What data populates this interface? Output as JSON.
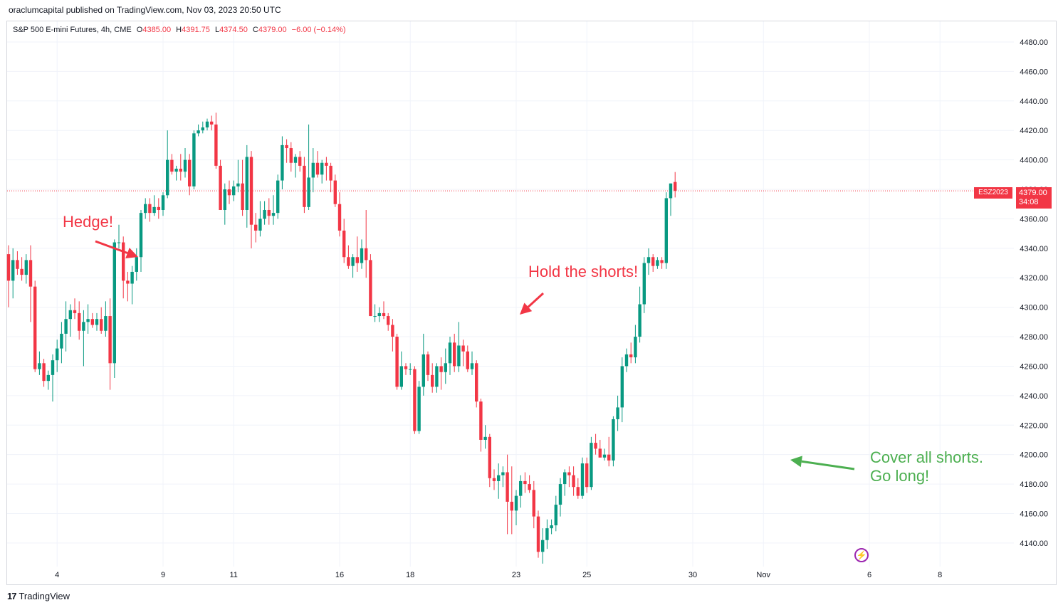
{
  "header": {
    "published": "oraclumcapital published on TradingView.com, Nov 03, 2023 20:50 UTC"
  },
  "legend": {
    "symbol": "S&P 500 E-mini Futures, 4h, CME",
    "open_label": "O",
    "open": "4385.00",
    "high_label": "H",
    "high": "4391.75",
    "low_label": "L",
    "low": "4374.50",
    "close_label": "C",
    "close": "4379.00",
    "change": "−6.00 (−0.14%)"
  },
  "price_badge": {
    "symbol": "ESZ2023",
    "price": "4379.00",
    "countdown": "34:08"
  },
  "annotations": {
    "hedge": "Hedge!",
    "hold": "Hold the shorts!",
    "cover_line1": "Cover all shorts.",
    "cover_line2": "Go long!"
  },
  "footer": {
    "brand": "TradingView"
  },
  "colors": {
    "up": "#089981",
    "down": "#f23645",
    "grid": "#f0f3fa",
    "annotation_red": "#f23645",
    "annotation_green": "#4caf50"
  },
  "icons": {
    "flash": "flash-icon",
    "logo": "tradingview-logo-icon"
  },
  "chart_data": {
    "type": "candlestick",
    "timeframe": "4h",
    "ylim": [
      4124,
      4494
    ],
    "y_ticks": [
      "4140.00",
      "4160.00",
      "4180.00",
      "4200.00",
      "4220.00",
      "4240.00",
      "4260.00",
      "4280.00",
      "4300.00",
      "4320.00",
      "4340.00",
      "4360.00",
      "4380.00",
      "4400.00",
      "4420.00",
      "4440.00",
      "4460.00",
      "4480.00"
    ],
    "x_ticks": [
      {
        "label": "4",
        "index": 11
      },
      {
        "label": "9",
        "index": 35
      },
      {
        "label": "11",
        "index": 51
      },
      {
        "label": "16",
        "index": 75
      },
      {
        "label": "18",
        "index": 91
      },
      {
        "label": "23",
        "index": 115
      },
      {
        "label": "25",
        "index": 131
      },
      {
        "label": "30",
        "index": 155
      },
      {
        "label": "Nov",
        "index": 171
      },
      {
        "label": "6",
        "index": 195
      },
      {
        "label": "8",
        "index": 211
      }
    ],
    "last_price": 4379.0,
    "grid": true,
    "candles": [
      {
        "o": 4336,
        "h": 4342,
        "l": 4300,
        "c": 4318
      },
      {
        "o": 4318,
        "h": 4340,
        "l": 4306,
        "c": 4332
      },
      {
        "o": 4332,
        "h": 4338,
        "l": 4322,
        "c": 4326
      },
      {
        "o": 4326,
        "h": 4334,
        "l": 4318,
        "c": 4322
      },
      {
        "o": 4322,
        "h": 4336,
        "l": 4316,
        "c": 4332
      },
      {
        "o": 4332,
        "h": 4342,
        "l": 4290,
        "c": 4314
      },
      {
        "o": 4314,
        "h": 4318,
        "l": 4256,
        "c": 4258
      },
      {
        "o": 4258,
        "h": 4270,
        "l": 4254,
        "c": 4262
      },
      {
        "o": 4262,
        "h": 4265,
        "l": 4246,
        "c": 4250
      },
      {
        "o": 4250,
        "h": 4257,
        "l": 4244,
        "c": 4254
      },
      {
        "o": 4254,
        "h": 4268,
        "l": 4236,
        "c": 4264
      },
      {
        "o": 4264,
        "h": 4278,
        "l": 4256,
        "c": 4272
      },
      {
        "o": 4272,
        "h": 4290,
        "l": 4262,
        "c": 4282
      },
      {
        "o": 4282,
        "h": 4304,
        "l": 4270,
        "c": 4292
      },
      {
        "o": 4292,
        "h": 4302,
        "l": 4280,
        "c": 4298
      },
      {
        "o": 4298,
        "h": 4306,
        "l": 4292,
        "c": 4296
      },
      {
        "o": 4296,
        "h": 4304,
        "l": 4278,
        "c": 4284
      },
      {
        "o": 4284,
        "h": 4298,
        "l": 4260,
        "c": 4290
      },
      {
        "o": 4290,
        "h": 4302,
        "l": 4282,
        "c": 4292
      },
      {
        "o": 4292,
        "h": 4296,
        "l": 4286,
        "c": 4288
      },
      {
        "o": 4288,
        "h": 4296,
        "l": 4284,
        "c": 4292
      },
      {
        "o": 4292,
        "h": 4300,
        "l": 4282,
        "c": 4284
      },
      {
        "o": 4284,
        "h": 4304,
        "l": 4280,
        "c": 4294
      },
      {
        "o": 4294,
        "h": 4306,
        "l": 4244,
        "c": 4262
      },
      {
        "o": 4262,
        "h": 4346,
        "l": 4252,
        "c": 4344
      },
      {
        "o": 4344,
        "h": 4356,
        "l": 4340,
        "c": 4344
      },
      {
        "o": 4344,
        "h": 4348,
        "l": 4306,
        "c": 4318
      },
      {
        "o": 4318,
        "h": 4324,
        "l": 4304,
        "c": 4316
      },
      {
        "o": 4316,
        "h": 4328,
        "l": 4302,
        "c": 4324
      },
      {
        "o": 4324,
        "h": 4340,
        "l": 4318,
        "c": 4334
      },
      {
        "o": 4334,
        "h": 4366,
        "l": 4324,
        "c": 4364
      },
      {
        "o": 4364,
        "h": 4374,
        "l": 4360,
        "c": 4370
      },
      {
        "o": 4370,
        "h": 4374,
        "l": 4358,
        "c": 4364
      },
      {
        "o": 4364,
        "h": 4376,
        "l": 4362,
        "c": 4368
      },
      {
        "o": 4368,
        "h": 4374,
        "l": 4360,
        "c": 4366
      },
      {
        "o": 4366,
        "h": 4378,
        "l": 4362,
        "c": 4376
      },
      {
        "o": 4376,
        "h": 4420,
        "l": 4374,
        "c": 4400
      },
      {
        "o": 4400,
        "h": 4404,
        "l": 4390,
        "c": 4392
      },
      {
        "o": 4392,
        "h": 4396,
        "l": 4386,
        "c": 4394
      },
      {
        "o": 4394,
        "h": 4404,
        "l": 4386,
        "c": 4392
      },
      {
        "o": 4392,
        "h": 4408,
        "l": 4388,
        "c": 4400
      },
      {
        "o": 4400,
        "h": 4404,
        "l": 4376,
        "c": 4382
      },
      {
        "o": 4382,
        "h": 4420,
        "l": 4380,
        "c": 4418
      },
      {
        "o": 4418,
        "h": 4424,
        "l": 4416,
        "c": 4420
      },
      {
        "o": 4420,
        "h": 4426,
        "l": 4418,
        "c": 4422
      },
      {
        "o": 4422,
        "h": 4428,
        "l": 4420,
        "c": 4426
      },
      {
        "o": 4426,
        "h": 4430,
        "l": 4420,
        "c": 4424
      },
      {
        "o": 4424,
        "h": 4432,
        "l": 4394,
        "c": 4396
      },
      {
        "o": 4396,
        "h": 4400,
        "l": 4366,
        "c": 4366
      },
      {
        "o": 4366,
        "h": 4384,
        "l": 4356,
        "c": 4380
      },
      {
        "o": 4380,
        "h": 4386,
        "l": 4370,
        "c": 4376
      },
      {
        "o": 4376,
        "h": 4386,
        "l": 4372,
        "c": 4382
      },
      {
        "o": 4382,
        "h": 4400,
        "l": 4378,
        "c": 4384
      },
      {
        "o": 4384,
        "h": 4400,
        "l": 4362,
        "c": 4366
      },
      {
        "o": 4366,
        "h": 4410,
        "l": 4354,
        "c": 4402
      },
      {
        "o": 4402,
        "h": 4406,
        "l": 4340,
        "c": 4356
      },
      {
        "o": 4356,
        "h": 4364,
        "l": 4344,
        "c": 4352
      },
      {
        "o": 4352,
        "h": 4372,
        "l": 4348,
        "c": 4360
      },
      {
        "o": 4360,
        "h": 4372,
        "l": 4356,
        "c": 4366
      },
      {
        "o": 4366,
        "h": 4374,
        "l": 4356,
        "c": 4362
      },
      {
        "o": 4362,
        "h": 4376,
        "l": 4356,
        "c": 4364
      },
      {
        "o": 4364,
        "h": 4390,
        "l": 4360,
        "c": 4386
      },
      {
        "o": 4386,
        "h": 4416,
        "l": 4380,
        "c": 4410
      },
      {
        "o": 4410,
        "h": 4414,
        "l": 4398,
        "c": 4408
      },
      {
        "o": 4408,
        "h": 4412,
        "l": 4392,
        "c": 4398
      },
      {
        "o": 4398,
        "h": 4404,
        "l": 4388,
        "c": 4402
      },
      {
        "o": 4402,
        "h": 4406,
        "l": 4392,
        "c": 4396
      },
      {
        "o": 4396,
        "h": 4402,
        "l": 4364,
        "c": 4368
      },
      {
        "o": 4368,
        "h": 4424,
        "l": 4366,
        "c": 4388
      },
      {
        "o": 4388,
        "h": 4408,
        "l": 4378,
        "c": 4398
      },
      {
        "o": 4398,
        "h": 4406,
        "l": 4388,
        "c": 4390
      },
      {
        "o": 4390,
        "h": 4400,
        "l": 4384,
        "c": 4398
      },
      {
        "o": 4398,
        "h": 4402,
        "l": 4386,
        "c": 4396
      },
      {
        "o": 4396,
        "h": 4398,
        "l": 4378,
        "c": 4386
      },
      {
        "o": 4386,
        "h": 4390,
        "l": 4368,
        "c": 4370
      },
      {
        "o": 4370,
        "h": 4378,
        "l": 4348,
        "c": 4352
      },
      {
        "o": 4352,
        "h": 4360,
        "l": 4330,
        "c": 4334
      },
      {
        "o": 4334,
        "h": 4342,
        "l": 4326,
        "c": 4328
      },
      {
        "o": 4328,
        "h": 4336,
        "l": 4320,
        "c": 4334
      },
      {
        "o": 4334,
        "h": 4348,
        "l": 4324,
        "c": 4330
      },
      {
        "o": 4330,
        "h": 4346,
        "l": 4326,
        "c": 4340
      },
      {
        "o": 4340,
        "h": 4366,
        "l": 4320,
        "c": 4332
      },
      {
        "o": 4332,
        "h": 4336,
        "l": 4294,
        "c": 4294
      },
      {
        "o": 4294,
        "h": 4302,
        "l": 4290,
        "c": 4294
      },
      {
        "o": 4294,
        "h": 4300,
        "l": 4290,
        "c": 4296
      },
      {
        "o": 4296,
        "h": 4304,
        "l": 4292,
        "c": 4294
      },
      {
        "o": 4294,
        "h": 4296,
        "l": 4284,
        "c": 4288
      },
      {
        "o": 4288,
        "h": 4292,
        "l": 4270,
        "c": 4280
      },
      {
        "o": 4280,
        "h": 4282,
        "l": 4244,
        "c": 4246
      },
      {
        "o": 4246,
        "h": 4270,
        "l": 4244,
        "c": 4260
      },
      {
        "o": 4260,
        "h": 4262,
        "l": 4254,
        "c": 4258
      },
      {
        "o": 4258,
        "h": 4262,
        "l": 4254,
        "c": 4258
      },
      {
        "o": 4258,
        "h": 4260,
        "l": 4214,
        "c": 4216
      },
      {
        "o": 4216,
        "h": 4250,
        "l": 4214,
        "c": 4246
      },
      {
        "o": 4246,
        "h": 4282,
        "l": 4240,
        "c": 4268
      },
      {
        "o": 4268,
        "h": 4270,
        "l": 4250,
        "c": 4254
      },
      {
        "o": 4254,
        "h": 4262,
        "l": 4242,
        "c": 4246
      },
      {
        "o": 4246,
        "h": 4262,
        "l": 4242,
        "c": 4260
      },
      {
        "o": 4260,
        "h": 4266,
        "l": 4244,
        "c": 4256
      },
      {
        "o": 4256,
        "h": 4272,
        "l": 4248,
        "c": 4262
      },
      {
        "o": 4262,
        "h": 4280,
        "l": 4254,
        "c": 4276
      },
      {
        "o": 4276,
        "h": 4282,
        "l": 4256,
        "c": 4260
      },
      {
        "o": 4260,
        "h": 4290,
        "l": 4256,
        "c": 4274
      },
      {
        "o": 4274,
        "h": 4278,
        "l": 4260,
        "c": 4270
      },
      {
        "o": 4270,
        "h": 4274,
        "l": 4256,
        "c": 4258
      },
      {
        "o": 4258,
        "h": 4270,
        "l": 4254,
        "c": 4262
      },
      {
        "o": 4262,
        "h": 4264,
        "l": 4232,
        "c": 4236
      },
      {
        "o": 4236,
        "h": 4238,
        "l": 4202,
        "c": 4210
      },
      {
        "o": 4210,
        "h": 4220,
        "l": 4204,
        "c": 4212
      },
      {
        "o": 4212,
        "h": 4214,
        "l": 4178,
        "c": 4184
      },
      {
        "o": 4184,
        "h": 4190,
        "l": 4176,
        "c": 4182
      },
      {
        "o": 4182,
        "h": 4194,
        "l": 4170,
        "c": 4186
      },
      {
        "o": 4186,
        "h": 4192,
        "l": 4178,
        "c": 4188
      },
      {
        "o": 4188,
        "h": 4200,
        "l": 4146,
        "c": 4168
      },
      {
        "o": 4168,
        "h": 4192,
        "l": 4146,
        "c": 4162
      },
      {
        "o": 4162,
        "h": 4176,
        "l": 4152,
        "c": 4172
      },
      {
        "o": 4172,
        "h": 4186,
        "l": 4164,
        "c": 4182
      },
      {
        "o": 4182,
        "h": 4188,
        "l": 4174,
        "c": 4180
      },
      {
        "o": 4180,
        "h": 4186,
        "l": 4174,
        "c": 4176
      },
      {
        "o": 4176,
        "h": 4182,
        "l": 4150,
        "c": 4158
      },
      {
        "o": 4158,
        "h": 4162,
        "l": 4130,
        "c": 4134
      },
      {
        "o": 4134,
        "h": 4150,
        "l": 4126,
        "c": 4142
      },
      {
        "o": 4142,
        "h": 4156,
        "l": 4136,
        "c": 4150
      },
      {
        "o": 4150,
        "h": 4156,
        "l": 4146,
        "c": 4152
      },
      {
        "o": 4152,
        "h": 4172,
        "l": 4148,
        "c": 4166
      },
      {
        "o": 4166,
        "h": 4184,
        "l": 4158,
        "c": 4180
      },
      {
        "o": 4180,
        "h": 4190,
        "l": 4172,
        "c": 4188
      },
      {
        "o": 4188,
        "h": 4192,
        "l": 4178,
        "c": 4186
      },
      {
        "o": 4186,
        "h": 4192,
        "l": 4172,
        "c": 4178
      },
      {
        "o": 4178,
        "h": 4184,
        "l": 4170,
        "c": 4172
      },
      {
        "o": 4172,
        "h": 4198,
        "l": 4170,
        "c": 4194
      },
      {
        "o": 4194,
        "h": 4198,
        "l": 4174,
        "c": 4178
      },
      {
        "o": 4178,
        "h": 4212,
        "l": 4176,
        "c": 4208
      },
      {
        "o": 4208,
        "h": 4214,
        "l": 4200,
        "c": 4204
      },
      {
        "o": 4204,
        "h": 4210,
        "l": 4198,
        "c": 4198
      },
      {
        "o": 4198,
        "h": 4204,
        "l": 4196,
        "c": 4200
      },
      {
        "o": 4200,
        "h": 4212,
        "l": 4192,
        "c": 4196
      },
      {
        "o": 4196,
        "h": 4226,
        "l": 4192,
        "c": 4224
      },
      {
        "o": 4224,
        "h": 4240,
        "l": 4216,
        "c": 4232
      },
      {
        "o": 4232,
        "h": 4266,
        "l": 4222,
        "c": 4260
      },
      {
        "o": 4260,
        "h": 4272,
        "l": 4256,
        "c": 4268
      },
      {
        "o": 4268,
        "h": 4276,
        "l": 4262,
        "c": 4266
      },
      {
        "o": 4266,
        "h": 4288,
        "l": 4262,
        "c": 4280
      },
      {
        "o": 4280,
        "h": 4314,
        "l": 4276,
        "c": 4302
      },
      {
        "o": 4302,
        "h": 4334,
        "l": 4296,
        "c": 4330
      },
      {
        "o": 4330,
        "h": 4340,
        "l": 4322,
        "c": 4334
      },
      {
        "o": 4334,
        "h": 4336,
        "l": 4324,
        "c": 4328
      },
      {
        "o": 4328,
        "h": 4334,
        "l": 4326,
        "c": 4332
      },
      {
        "o": 4332,
        "h": 4334,
        "l": 4326,
        "c": 4330
      },
      {
        "o": 4330,
        "h": 4378,
        "l": 4326,
        "c": 4374
      },
      {
        "o": 4374,
        "h": 4384,
        "l": 4362,
        "c": 4384
      },
      {
        "o": 4385,
        "h": 4391.75,
        "l": 4374.5,
        "c": 4379
      }
    ]
  }
}
